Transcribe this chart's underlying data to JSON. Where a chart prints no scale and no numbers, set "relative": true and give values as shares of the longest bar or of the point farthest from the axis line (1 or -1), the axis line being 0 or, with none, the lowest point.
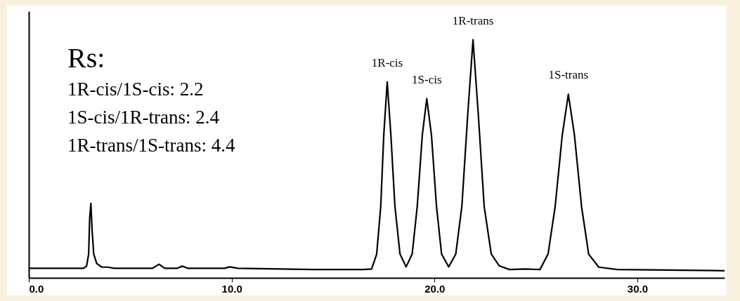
{
  "chart_data": {
    "type": "line",
    "relative": true,
    "x": [
      0,
      2.7,
      2.85,
      2.95,
      3.0,
      3.06,
      3.12,
      3.2,
      3.35,
      3.6,
      3.9,
      4.2,
      6.1,
      6.42,
      6.7,
      7.3,
      7.57,
      7.85,
      9.65,
      9.9,
      10.3,
      14,
      16.5,
      16.9,
      17.15,
      17.35,
      17.5,
      17.67,
      17.85,
      18.05,
      18.3,
      18.6,
      18.9,
      19.15,
      19.4,
      19.62,
      19.85,
      20.1,
      20.35,
      20.7,
      21.05,
      21.35,
      21.65,
      21.9,
      22.15,
      22.45,
      22.8,
      23.2,
      23.7,
      24.5,
      25.2,
      25.6,
      25.95,
      26.3,
      26.6,
      26.9,
      27.25,
      27.6,
      28.1,
      29,
      34.3
    ],
    "series": [
      {
        "color": "#000000",
        "values": [
          0.04,
          0.04,
          0.05,
          0.1,
          0.25,
          0.313,
          0.2,
          0.1,
          0.06,
          0.045,
          0.045,
          0.04,
          0.04,
          0.057,
          0.04,
          0.04,
          0.049,
          0.04,
          0.04,
          0.046,
          0.04,
          0.035,
          0.035,
          0.037,
          0.1,
          0.3,
          0.6,
          0.823,
          0.6,
          0.3,
          0.1,
          0.046,
          0.1,
          0.3,
          0.6,
          0.753,
          0.6,
          0.3,
          0.1,
          0.046,
          0.1,
          0.3,
          0.7,
          1,
          0.7,
          0.3,
          0.1,
          0.05,
          0.035,
          0.037,
          0.035,
          0.1,
          0.3,
          0.6,
          0.771,
          0.6,
          0.3,
          0.1,
          0.045,
          0.035,
          0.03
        ]
      }
    ],
    "xlim": [
      0,
      34.3
    ],
    "xticks": [
      {
        "value": 0,
        "label": "0.0"
      },
      {
        "value": 10,
        "label": "10.0"
      },
      {
        "value": 20,
        "label": "20.0"
      },
      {
        "value": 30,
        "label": "30.0"
      }
    ],
    "annotations": [
      "Rs:",
      "1R-cis/1S-cis: 2.2",
      "1S-cis/1R-trans: 2.4",
      "1R-trans/1S-trans: 4.4",
      {
        "text": "1R-cis",
        "x": 17.67,
        "y": 0.823
      },
      {
        "text": "1S-cis",
        "x": 19.62,
        "y": 0.753
      },
      {
        "text": "1R-trans",
        "x": 21.9,
        "y": 1
      },
      {
        "text": "1S-trans",
        "x": 26.6,
        "y": 0.771
      }
    ],
    "grid": false,
    "marker": "none",
    "line_style": "solid"
  }
}
